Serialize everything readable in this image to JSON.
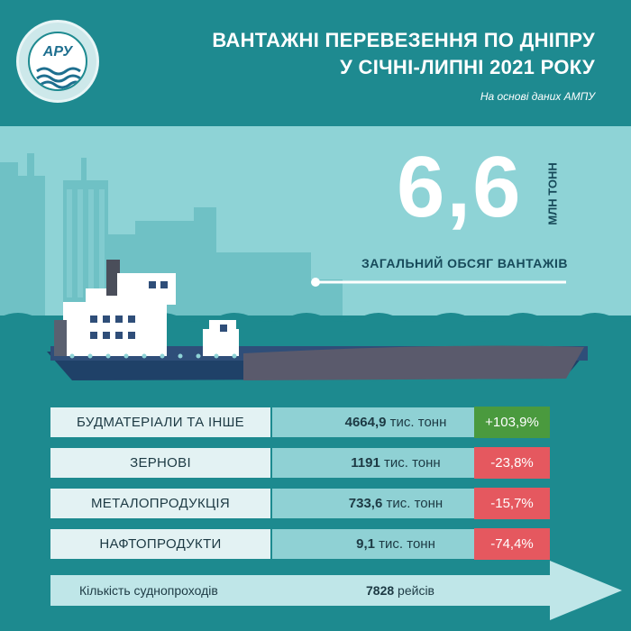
{
  "header": {
    "logo_text": "АРУ",
    "title_line1": "ВАНТАЖНІ ПЕРЕВЕЗЕННЯ ПО ДНІПРУ",
    "title_line2": "У СІЧНІ-ЛИПНІ 2021 РОКУ",
    "subtitle": "На основі даних АМПУ"
  },
  "total": {
    "value": "6,6",
    "unit": "МЛН ТОНН",
    "label": "ЗАГАЛЬНИЙ ОБСЯГ ВАНТАЖІВ"
  },
  "rows": [
    {
      "category": "БУДМАТЕРІАЛИ ТА ІНШЕ",
      "amount": "4664,9",
      "unit": " тис. тонн",
      "change": "+103,9%",
      "change_color": "#4a9a3e"
    },
    {
      "category": "ЗЕРНОВІ",
      "amount": "1191",
      "unit": " тис. тонн",
      "change": "-23,8%",
      "change_color": "#e5585f"
    },
    {
      "category": "МЕТАЛОПРОДУКЦІЯ",
      "amount": "733,6",
      "unit": " тис. тонн",
      "change": "-15,7%",
      "change_color": "#e5585f"
    },
    {
      "category": "НАФТОПРОДУКТИ",
      "amount": "9,1",
      "unit": " тис. тонн",
      "change": "-74,4%",
      "change_color": "#e5585f"
    }
  ],
  "trips": {
    "label": "Кількість суднопроходів",
    "value": "7828",
    "unit": " рейсів"
  },
  "colors": {
    "header_bg": "#1e8a90",
    "sky": "#8ed3d6",
    "city": "#6fc1c5",
    "water": "#1d8a8f",
    "hull": "#2e4a6e",
    "arrow": "#bfe6e8"
  }
}
